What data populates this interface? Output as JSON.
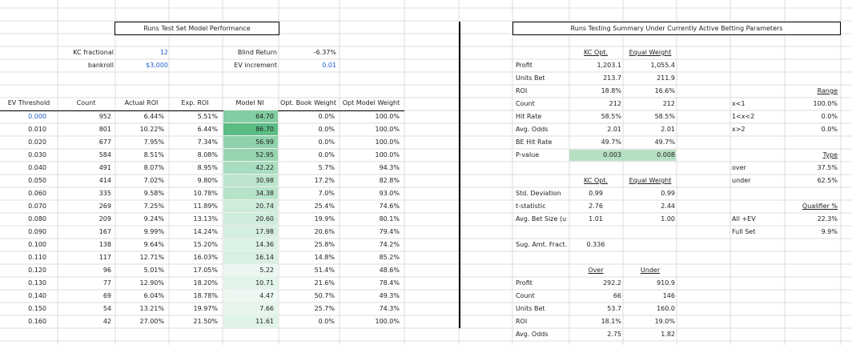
{
  "left": {
    "title": "Runs Test Set Model Performance",
    "params": {
      "kc_label": "KC fractional",
      "kc_value": "12",
      "bankroll_label": "bankroll",
      "bankroll_value": "$3,000",
      "blind_label": "Blind Return",
      "blind_value": "-6.37%",
      "ev_inc_label": "EV increment",
      "ev_inc_value": "0.01"
    },
    "headers": [
      "EV Threshold",
      "Count",
      "Actual ROI",
      "Exp. ROI",
      "Model NI",
      "Opt. Book Weight",
      "Opt Model Weight"
    ],
    "rows": [
      [
        "0.000",
        "952",
        "6.44%",
        "5.51%",
        "64.70",
        "0.0%",
        "100.0%"
      ],
      [
        "0.010",
        "801",
        "10.22%",
        "6.44%",
        "86.70",
        "0.0%",
        "100.0%"
      ],
      [
        "0.020",
        "677",
        "7.95%",
        "7.34%",
        "56.99",
        "0.0%",
        "100.0%"
      ],
      [
        "0.030",
        "584",
        "8.51%",
        "8.08%",
        "52.95",
        "0.0%",
        "100.0%"
      ],
      [
        "0.040",
        "491",
        "8.07%",
        "8.95%",
        "42.22",
        "5.7%",
        "94.3%"
      ],
      [
        "0.050",
        "414",
        "7.02%",
        "9.80%",
        "30.98",
        "17.2%",
        "82.8%"
      ],
      [
        "0.060",
        "335",
        "9.58%",
        "10.78%",
        "34.38",
        "7.0%",
        "93.0%"
      ],
      [
        "0.070",
        "269",
        "7.25%",
        "11.89%",
        "20.74",
        "25.4%",
        "74.6%"
      ],
      [
        "0.080",
        "209",
        "9.24%",
        "13.13%",
        "20.60",
        "19.9%",
        "80.1%"
      ],
      [
        "0.090",
        "167",
        "9.99%",
        "14.24%",
        "17.98",
        "20.6%",
        "79.4%"
      ],
      [
        "0.100",
        "138",
        "9.64%",
        "15.20%",
        "14.36",
        "25.8%",
        "74.2%"
      ],
      [
        "0.110",
        "117",
        "12.71%",
        "16.03%",
        "16.14",
        "14.8%",
        "85.2%"
      ],
      [
        "0.120",
        "96",
        "5.01%",
        "17.05%",
        "5.22",
        "51.4%",
        "48.6%"
      ],
      [
        "0.130",
        "77",
        "12.90%",
        "18.20%",
        "10.71",
        "21.6%",
        "78.4%"
      ],
      [
        "0.140",
        "69",
        "6.04%",
        "18.78%",
        "4.47",
        "50.7%",
        "49.3%"
      ],
      [
        "0.150",
        "54",
        "13.21%",
        "19.97%",
        "7.66",
        "25.7%",
        "74.3%"
      ],
      [
        "0.160",
        "42",
        "27.00%",
        "21.50%",
        "11.61",
        "0.0%",
        "100.0%"
      ]
    ]
  },
  "right": {
    "title": "Runs Testing Summary Under Currently Active Betting Parameters",
    "summary": {
      "col1": "KC Opt.",
      "col2": "Equal Weight",
      "rows": [
        [
          "Profit",
          "1,203.1",
          "1,055.4"
        ],
        [
          "Units Bet",
          "213.7",
          "211.9"
        ],
        [
          "ROI",
          "18.8%",
          "16.6%"
        ],
        [
          "Count",
          "212",
          "212"
        ],
        [
          "Hit Rate",
          "58.5%",
          "58.5%"
        ],
        [
          "Avg. Odds",
          "2.01",
          "2.01"
        ],
        [
          "BE Hit Rate",
          "49.7%",
          "49.7%"
        ],
        [
          "P-value",
          "0.003",
          "0.008"
        ]
      ]
    },
    "stats": {
      "col1": "KC Opt.",
      "col2": "Equal Weight",
      "rows": [
        [
          "Std. Deviation",
          "0.99",
          "0.99"
        ],
        [
          "t-statistic",
          "2.76",
          "2.44"
        ],
        [
          "Avg. Bet Size (u",
          "1.01",
          "1.00"
        ]
      ]
    },
    "sug": {
      "label": "Sug. Amt. Fract.",
      "value": "0.336"
    },
    "ou": {
      "col1": "Over",
      "col2": "Under",
      "rows": [
        [
          "Profit",
          "292.2",
          "910.9"
        ],
        [
          "Count",
          "66",
          "146"
        ],
        [
          "Units Bet",
          "53.7",
          "160.0"
        ],
        [
          "ROI",
          "18.1%",
          "19.0%"
        ],
        [
          "Avg. Odds",
          "2.75",
          "1.82"
        ]
      ]
    },
    "range": {
      "title": "Range",
      "rows": [
        [
          "x<1",
          "100.0%"
        ],
        [
          "1<x<2",
          "0.0%"
        ],
        [
          "x>2",
          "0.0%"
        ]
      ]
    },
    "type": {
      "title": "Type",
      "rows": [
        [
          "over",
          "37.5%"
        ],
        [
          "under",
          "62.5%"
        ]
      ]
    },
    "qualifier": {
      "title": "Qualifier %",
      "rows": [
        [
          "All +EV",
          "22.3%"
        ],
        [
          "Full Set",
          "9.9%"
        ]
      ]
    }
  },
  "colors": {
    "ni_high": "#5bbd84",
    "ni_low": "#e9f6ee",
    "pvalue_fill": "#b7e0c3",
    "gridline": "#dcdcdc",
    "blue_text": "#1f5fd1"
  }
}
